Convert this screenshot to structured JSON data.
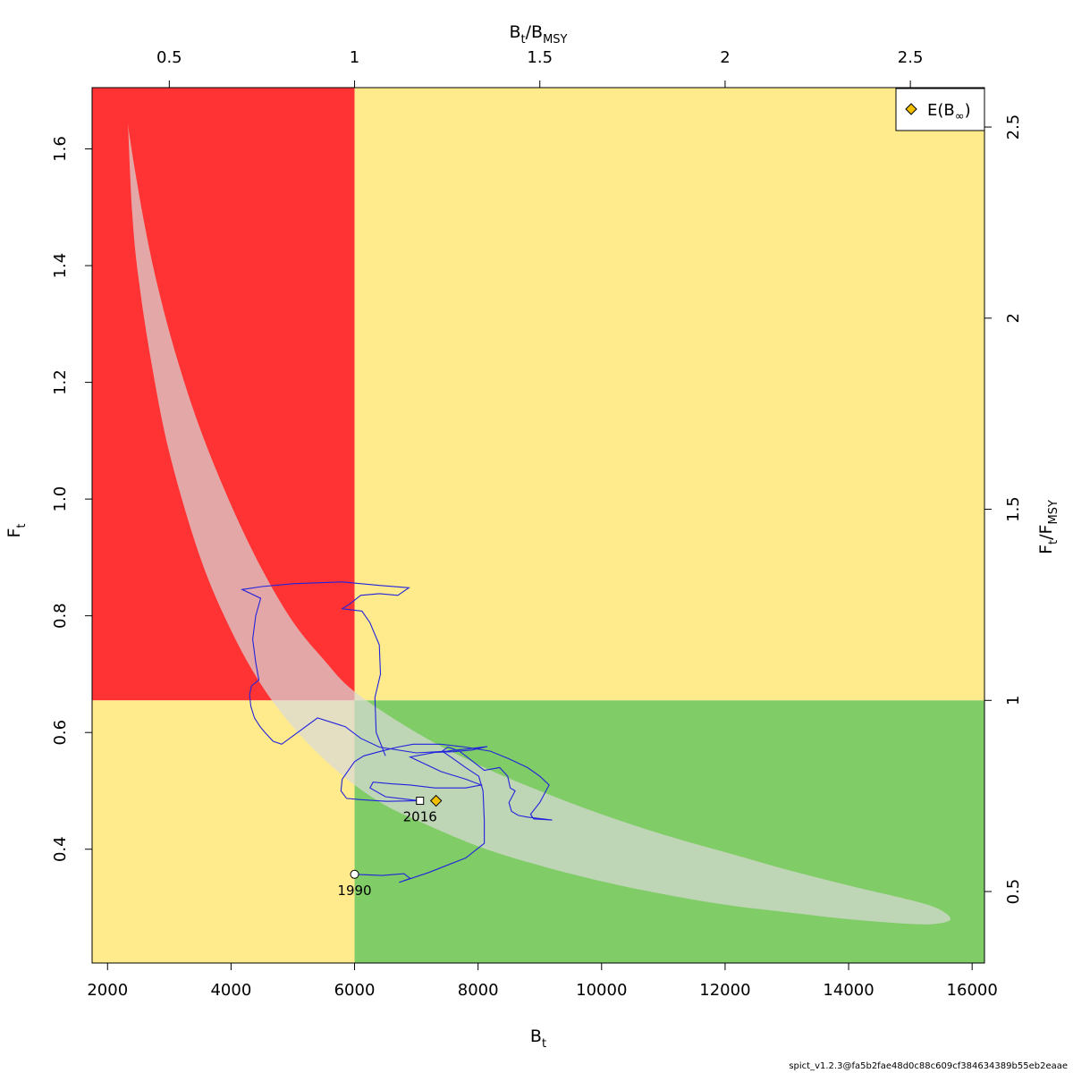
{
  "chart_data": {
    "type": "scatter",
    "x_axis": {
      "label_main": "B",
      "label_sub": "t",
      "range": [
        1750,
        16200
      ],
      "ticks": [
        2000,
        4000,
        6000,
        8000,
        10000,
        12000,
        14000,
        16000
      ]
    },
    "y_axis": {
      "label_main": "F",
      "label_sub": "t",
      "range": [
        0.205,
        1.705
      ],
      "ticks": [
        0.4,
        0.6,
        0.8,
        1.0,
        1.2,
        1.4,
        1.6
      ],
      "tick_labels": [
        "0.4",
        "0.6",
        "0.8",
        "1.0",
        "1.2",
        "1.4",
        "1.6"
      ]
    },
    "top_axis": {
      "label_main": "B",
      "label_sub1": "t",
      "label_slash": "/B",
      "label_sub2": "MSY",
      "ticks": [
        0.5,
        1,
        1.5,
        2,
        2.5
      ],
      "tick_labels": [
        "0.5",
        "1",
        "1.5",
        "2",
        "2.5"
      ]
    },
    "right_axis": {
      "label_main": "F",
      "label_sub1": "t",
      "label_slash": "/F",
      "label_sub2": "MSY",
      "ticks": [
        0.5,
        1,
        1.5,
        2,
        2.5
      ],
      "tick_labels": [
        "0.5",
        "1",
        "1.5",
        "2",
        "2.5"
      ]
    },
    "reference_points": {
      "Bmsy": 6000,
      "Fmsy": 0.655
    },
    "zones": [
      {
        "name": "overfished-overfishing",
        "color": "#ff3333"
      },
      {
        "name": "one-limit-exceeded",
        "color": "#ffeb8c"
      },
      {
        "name": "sustainable",
        "color": "#80cc66"
      }
    ],
    "confidence_region": {
      "color": "#d9d9d9",
      "outer_edge": [
        [
          2330,
          1.645
        ],
        [
          2360,
          1.62
        ],
        [
          2450,
          1.56
        ],
        [
          2600,
          1.47
        ],
        [
          2800,
          1.37
        ],
        [
          3100,
          1.25
        ],
        [
          3500,
          1.12
        ],
        [
          4000,
          0.99
        ],
        [
          4500,
          0.88
        ],
        [
          5000,
          0.79
        ],
        [
          5500,
          0.725
        ],
        [
          6000,
          0.67
        ],
        [
          7000,
          0.6
        ],
        [
          8000,
          0.545
        ],
        [
          9000,
          0.5
        ],
        [
          10000,
          0.46
        ],
        [
          11000,
          0.425
        ],
        [
          12000,
          0.395
        ],
        [
          13000,
          0.365
        ],
        [
          14000,
          0.338
        ],
        [
          15000,
          0.313
        ],
        [
          15450,
          0.298
        ],
        [
          15650,
          0.28
        ]
      ],
      "inner_edge": [
        [
          15650,
          0.28
        ],
        [
          15400,
          0.272
        ],
        [
          15000,
          0.272
        ],
        [
          14000,
          0.28
        ],
        [
          13000,
          0.292
        ],
        [
          12000,
          0.305
        ],
        [
          11000,
          0.323
        ],
        [
          10000,
          0.345
        ],
        [
          9000,
          0.372
        ],
        [
          8000,
          0.405
        ],
        [
          7000,
          0.45
        ],
        [
          6500,
          0.475
        ],
        [
          6000,
          0.51
        ],
        [
          5500,
          0.555
        ],
        [
          5000,
          0.61
        ],
        [
          4500,
          0.68
        ],
        [
          4000,
          0.775
        ],
        [
          3500,
          0.9
        ],
        [
          3000,
          1.08
        ],
        [
          2700,
          1.24
        ],
        [
          2500,
          1.38
        ],
        [
          2400,
          1.49
        ],
        [
          2330,
          1.645
        ]
      ]
    },
    "trajectory": {
      "color": "#2222dd",
      "points": [
        [
          6000,
          0.357
        ],
        [
          6450,
          0.355
        ],
        [
          6800,
          0.358
        ],
        [
          6900,
          0.35
        ],
        [
          6720,
          0.343
        ],
        [
          7200,
          0.36
        ],
        [
          7800,
          0.385
        ],
        [
          8100,
          0.41
        ],
        [
          8100,
          0.45
        ],
        [
          8080,
          0.5
        ],
        [
          8010,
          0.525
        ],
        [
          7800,
          0.54
        ],
        [
          7600,
          0.555
        ],
        [
          7420,
          0.568
        ],
        [
          7510,
          0.575
        ],
        [
          7700,
          0.568
        ],
        [
          7920,
          0.55
        ],
        [
          8100,
          0.535
        ],
        [
          8350,
          0.54
        ],
        [
          8480,
          0.525
        ],
        [
          8520,
          0.505
        ],
        [
          8600,
          0.5
        ],
        [
          8500,
          0.48
        ],
        [
          8540,
          0.465
        ],
        [
          8650,
          0.458
        ],
        [
          8800,
          0.455
        ],
        [
          8950,
          0.453
        ],
        [
          9200,
          0.45
        ],
        [
          8900,
          0.452
        ],
        [
          8850,
          0.46
        ],
        [
          9000,
          0.48
        ],
        [
          9150,
          0.51
        ],
        [
          9000,
          0.525
        ],
        [
          8800,
          0.54
        ],
        [
          8500,
          0.555
        ],
        [
          8200,
          0.568
        ],
        [
          7800,
          0.575
        ],
        [
          7400,
          0.58
        ],
        [
          6950,
          0.58
        ],
        [
          6700,
          0.575
        ],
        [
          6500,
          0.57
        ],
        [
          6150,
          0.56
        ],
        [
          6000,
          0.55
        ],
        [
          5800,
          0.52
        ],
        [
          5780,
          0.5
        ],
        [
          5870,
          0.487
        ],
        [
          6100,
          0.485
        ],
        [
          6520,
          0.482
        ],
        [
          6980,
          0.483
        ],
        [
          7060,
          0.483
        ]
      ],
      "points_b": [
        [
          7060,
          0.483
        ],
        [
          6900,
          0.485
        ],
        [
          6500,
          0.49
        ],
        [
          6250,
          0.505
        ],
        [
          6300,
          0.515
        ],
        [
          6600,
          0.512
        ],
        [
          6900,
          0.51
        ],
        [
          7300,
          0.505
        ],
        [
          7800,
          0.505
        ],
        [
          8050,
          0.51
        ],
        [
          7800,
          0.52
        ],
        [
          7400,
          0.533
        ],
        [
          7100,
          0.548
        ],
        [
          6900,
          0.558
        ],
        [
          7300,
          0.566
        ],
        [
          7600,
          0.567
        ],
        [
          7900,
          0.57
        ],
        [
          8150,
          0.576
        ],
        [
          7500,
          0.568
        ],
        [
          7000,
          0.565
        ],
        [
          6400,
          0.575
        ],
        [
          6100,
          0.59
        ],
        [
          5850,
          0.61
        ],
        [
          5400,
          0.625
        ],
        [
          4820,
          0.58
        ],
        [
          4680,
          0.585
        ],
        [
          4550,
          0.6
        ],
        [
          4470,
          0.61
        ],
        [
          4380,
          0.625
        ],
        [
          4320,
          0.645
        ],
        [
          4300,
          0.665
        ],
        [
          4330,
          0.68
        ],
        [
          4450,
          0.69
        ],
        [
          4400,
          0.72
        ],
        [
          4350,
          0.76
        ],
        [
          4400,
          0.8
        ],
        [
          4480,
          0.83
        ],
        [
          4180,
          0.845
        ],
        [
          4500,
          0.85
        ],
        [
          5000,
          0.855
        ],
        [
          5800,
          0.858
        ],
        [
          6400,
          0.852
        ],
        [
          6880,
          0.848
        ],
        [
          6700,
          0.835
        ],
        [
          6400,
          0.838
        ],
        [
          6100,
          0.835
        ],
        [
          5920,
          0.82
        ],
        [
          5800,
          0.812
        ],
        [
          6120,
          0.808
        ],
        [
          6250,
          0.788
        ],
        [
          6400,
          0.75
        ],
        [
          6420,
          0.7
        ],
        [
          6330,
          0.66
        ],
        [
          6350,
          0.6
        ],
        [
          6500,
          0.56
        ]
      ]
    },
    "markers": [
      {
        "name": "start",
        "x": 6000,
        "y": 0.357,
        "shape": "circle",
        "label": "1990"
      },
      {
        "name": "end",
        "x": 7060,
        "y": 0.483,
        "shape": "square",
        "label": "2016"
      },
      {
        "name": "E-B-inf",
        "x": 7320,
        "y": 0.483,
        "shape": "diamond",
        "color": "#f0c000"
      }
    ],
    "legend": {
      "placement": "top-right",
      "entries": [
        {
          "text_main": "E(B",
          "text_sub": "∞",
          "text_end": ")",
          "marker": "diamond",
          "color": "#f0c000"
        }
      ]
    }
  },
  "footer": "spict_v1.2.3@fa5b2fae48d0c88c609cf384634389b55eb2eaae"
}
